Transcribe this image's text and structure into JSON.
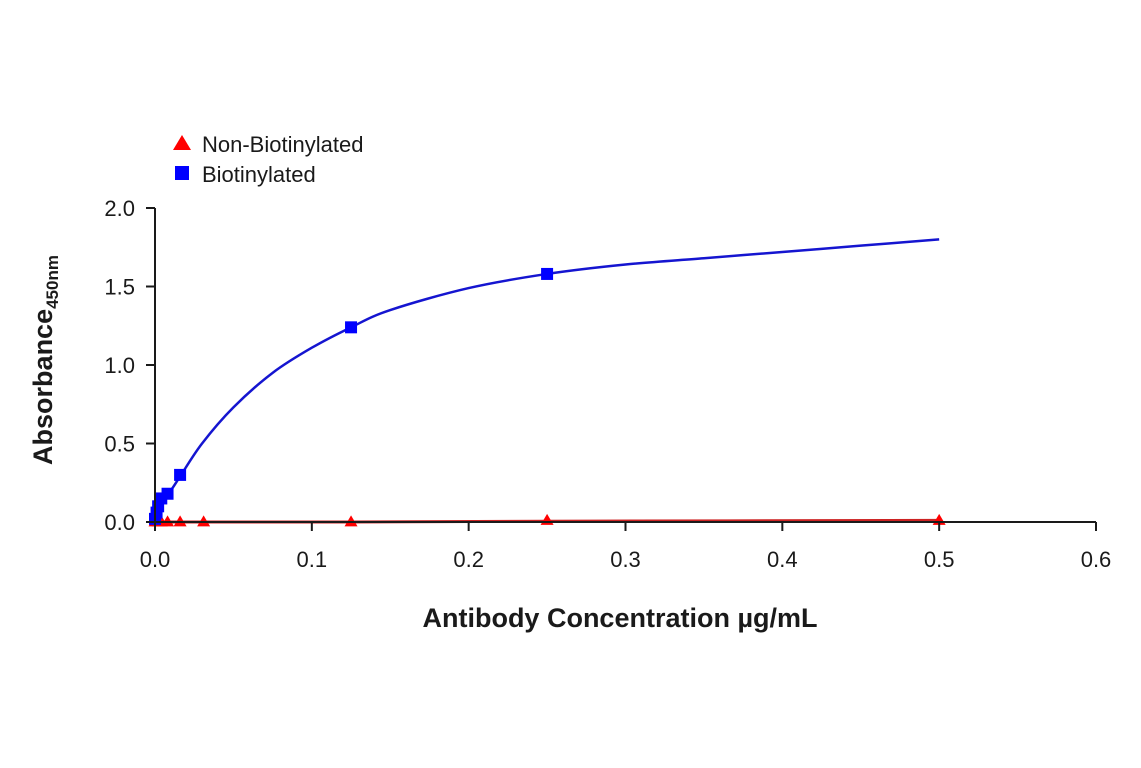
{
  "chart_data": {
    "type": "scatter",
    "xlabel": "Antibody Concentration µg/mL",
    "ylabel_main": "Absorbance",
    "ylabel_sub": "450nm",
    "xlim": [
      0,
      0.6
    ],
    "ylim": [
      0,
      2.0
    ],
    "x_ticks": [
      0.0,
      0.1,
      0.2,
      0.3,
      0.4,
      0.5,
      0.6
    ],
    "x_tick_labels": [
      "0.0",
      "0.1",
      "0.2",
      "0.3",
      "0.4",
      "0.5",
      "0.6"
    ],
    "y_ticks": [
      0.0,
      0.5,
      1.0,
      1.5,
      2.0
    ],
    "y_tick_labels": [
      "0.0",
      "0.5",
      "1.0",
      "1.5",
      "2.0"
    ],
    "grid": false,
    "legend_position": "top-left",
    "series": [
      {
        "name": "Non-Biotinylated",
        "color": "#ff0000",
        "line_color": "#cc2222",
        "marker": "triangle",
        "x": [
          0.0,
          0.002,
          0.004,
          0.008,
          0.016,
          0.031,
          0.125,
          0.25,
          0.5
        ],
        "y": [
          0.0,
          0.0,
          0.0,
          0.0,
          0.0,
          0.0,
          0.0,
          0.01,
          0.01
        ],
        "fit_curve": [
          [
            0.0,
            0.0
          ],
          [
            0.125,
            0.0
          ],
          [
            0.25,
            0.005
          ],
          [
            0.5,
            0.01
          ]
        ]
      },
      {
        "name": "Biotinylated",
        "color": "#0000ff",
        "line_color": "#1515d0",
        "marker": "square",
        "x": [
          0.0,
          0.001,
          0.002,
          0.004,
          0.008,
          0.016,
          0.125,
          0.25
        ],
        "y": [
          0.02,
          0.06,
          0.1,
          0.15,
          0.18,
          0.3,
          1.24,
          1.58
        ],
        "fit_curve": [
          [
            0.0,
            0.0
          ],
          [
            0.002,
            0.08
          ],
          [
            0.005,
            0.14
          ],
          [
            0.01,
            0.2
          ],
          [
            0.016,
            0.29
          ],
          [
            0.03,
            0.5
          ],
          [
            0.05,
            0.73
          ],
          [
            0.075,
            0.95
          ],
          [
            0.1,
            1.11
          ],
          [
            0.125,
            1.24
          ],
          [
            0.15,
            1.35
          ],
          [
            0.2,
            1.49
          ],
          [
            0.25,
            1.58
          ],
          [
            0.3,
            1.64
          ],
          [
            0.35,
            1.68
          ],
          [
            0.4,
            1.72
          ],
          [
            0.45,
            1.76
          ],
          [
            0.5,
            1.8
          ]
        ]
      }
    ]
  }
}
